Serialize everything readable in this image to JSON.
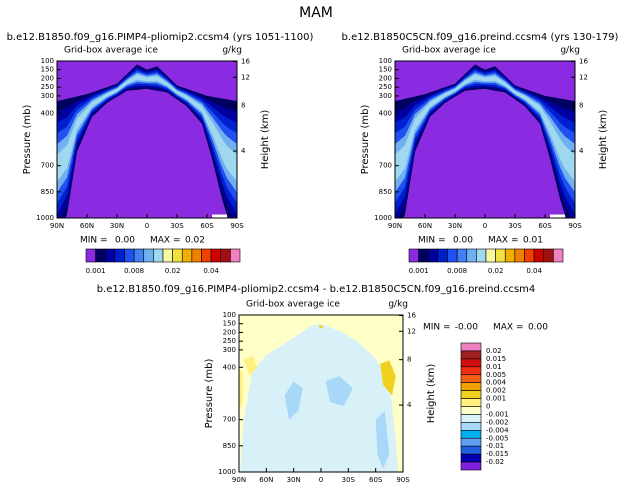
{
  "title": "MAM",
  "chart_data": [
    {
      "type": "contour",
      "title": "b.e12.B1850.f09_g16.PIMP4-pliomip2.ccsm4 (yrs 1051-1100)",
      "subtitle": "Grid-box average ice",
      "units": "g/kg",
      "ylabel": "Pressure (mb)",
      "y2label": "Height (km)",
      "xlim": [
        90,
        -90
      ],
      "xticks": [
        {
          "value": 90,
          "label": "90N"
        },
        {
          "value": 60,
          "label": "60N"
        },
        {
          "value": 30,
          "label": "30N"
        },
        0,
        {
          "value": -30,
          "label": "30S"
        },
        {
          "value": -60,
          "label": "60S"
        },
        {
          "value": -90,
          "label": "90S"
        }
      ],
      "ylim": [
        1000,
        100
      ],
      "yticks": [
        100,
        150,
        200,
        250,
        300,
        400,
        700,
        850,
        1000
      ],
      "y2ticks": [
        4,
        8,
        12,
        16
      ],
      "min_text": "MIN =",
      "min": {
        "value": 0,
        "label": "0.00"
      },
      "max_text": "MAX =",
      "max": {
        "value": 0.02,
        "label": "0.02"
      },
      "colorbar": {
        "orientation": "horizontal",
        "colors": [
          "#8a2be2",
          "#000060",
          "#0000a0",
          "#0020d0",
          "#2050f0",
          "#4080f0",
          "#70b0f0",
          "#a0d8f0",
          "#f8f8a0",
          "#f0e040",
          "#f0b000",
          "#f08000",
          "#f04000",
          "#d00000",
          "#a01010",
          "#f080c0"
        ],
        "levels": [
          0.001,
          0.008,
          0.02,
          0.04
        ]
      }
    },
    {
      "type": "contour",
      "title": "b.e12.B1850C5CN.f09_g16.preind.ccsm4 (yrs 130-179)",
      "subtitle": "Grid-box average ice",
      "units": "g/kg",
      "ylabel": "Pressure (mb)",
      "y2label": "Height (km)",
      "xlim": [
        90,
        -90
      ],
      "xticks": [
        {
          "value": 90,
          "label": "90N"
        },
        {
          "value": 60,
          "label": "60N"
        },
        {
          "value": 30,
          "label": "30N"
        },
        0,
        {
          "value": -30,
          "label": "30S"
        },
        {
          "value": -60,
          "label": "60S"
        },
        {
          "value": -90,
          "label": "90S"
        }
      ],
      "ylim": [
        1000,
        100
      ],
      "yticks": [
        100,
        150,
        200,
        250,
        300,
        400,
        700,
        850,
        1000
      ],
      "y2ticks": [
        4,
        8,
        12,
        16
      ],
      "min_text": "MIN =",
      "min": {
        "value": 0,
        "label": "0.00"
      },
      "max_text": "MAX =",
      "max": {
        "value": 0.01,
        "label": "0.01"
      },
      "colorbar": {
        "orientation": "horizontal",
        "colors": [
          "#8a2be2",
          "#000060",
          "#0000a0",
          "#0020d0",
          "#2050f0",
          "#4080f0",
          "#70b0f0",
          "#a0d8f0",
          "#f8f8a0",
          "#f0e040",
          "#f0b000",
          "#f08000",
          "#f04000",
          "#d00000",
          "#a01010",
          "#f080c0"
        ],
        "levels": [
          0.001,
          0.008,
          0.02,
          0.04
        ]
      }
    },
    {
      "type": "contour-diff",
      "title": "b.e12.B1850.f09_g16.PIMP4-pliomip2.ccsm4 - b.e12.B1850C5CN.f09_g16.preind.ccsm4",
      "subtitle": "Grid-box average ice",
      "units": "g/kg",
      "ylabel": "Pressure (mb)",
      "y2label": "Height (km)",
      "xlim": [
        90,
        -90
      ],
      "xticks": [
        {
          "value": 90,
          "label": "90N"
        },
        {
          "value": 60,
          "label": "60N"
        },
        {
          "value": 30,
          "label": "30N"
        },
        0,
        {
          "value": -30,
          "label": "30S"
        },
        {
          "value": -60,
          "label": "60S"
        },
        {
          "value": -90,
          "label": "90S"
        }
      ],
      "ylim": [
        1000,
        100
      ],
      "yticks": [
        100,
        150,
        200,
        250,
        300,
        400,
        700,
        850,
        1000
      ],
      "y2ticks": [
        4,
        8,
        12,
        16
      ],
      "min_text": "MIN =",
      "min": {
        "value": 0,
        "label": "-0.00"
      },
      "max_text": "MAX =",
      "max": {
        "value": 0,
        "label": "0.00"
      },
      "colorbar": {
        "orientation": "vertical",
        "colors": [
          "#f080c0",
          "#a02020",
          "#d01010",
          "#f03010",
          "#f06010",
          "#f0a000",
          "#f0d020",
          "#fff080",
          "#ffffc8",
          "#d8f0f8",
          "#a8d8f8",
          "#00b0f0",
          "#60a0f0",
          "#2060e0",
          "#0000b0",
          "#8020e0"
        ],
        "levels": [
          0.02,
          0.015,
          0.01,
          0.005,
          0.004,
          0.002,
          0.001,
          0,
          -0.001,
          -0.002,
          -0.004,
          -0.005,
          -0.01,
          -0.015,
          -0.02
        ]
      }
    }
  ]
}
